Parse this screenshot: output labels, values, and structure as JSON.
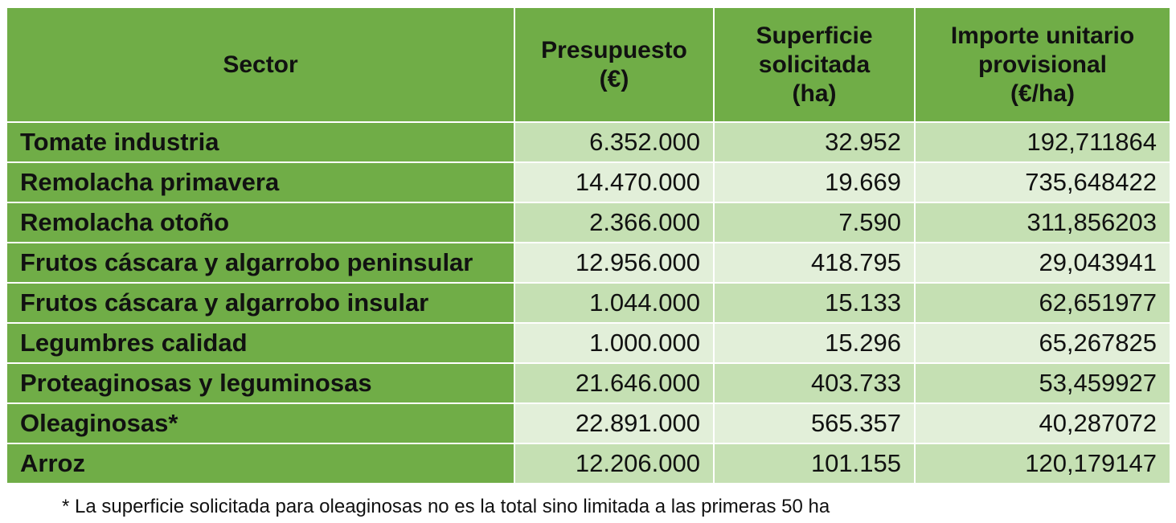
{
  "table": {
    "headers": {
      "sector": "Sector",
      "presupuesto": [
        "Presupuesto",
        "(€)"
      ],
      "superficie": [
        "Superficie",
        "solicitada",
        "(ha)"
      ],
      "importe": [
        "Importe unitario",
        "provisional",
        "(€/ha)"
      ]
    },
    "rows": [
      {
        "sector": "Tomate industria",
        "presupuesto": "6.352.000",
        "superficie": "32.952",
        "importe": "192,711864"
      },
      {
        "sector": "Remolacha primavera",
        "presupuesto": "14.470.000",
        "superficie": "19.669",
        "importe": "735,648422"
      },
      {
        "sector": "Remolacha otoño",
        "presupuesto": "2.366.000",
        "superficie": "7.590",
        "importe": "311,856203"
      },
      {
        "sector": "Frutos cáscara y algarrobo peninsular",
        "presupuesto": "12.956.000",
        "superficie": "418.795",
        "importe": "29,043941"
      },
      {
        "sector": "Frutos cáscara y algarrobo insular",
        "presupuesto": "1.044.000",
        "superficie": "15.133",
        "importe": "62,651977"
      },
      {
        "sector": "Legumbres calidad",
        "presupuesto": "1.000.000",
        "superficie": "15.296",
        "importe": "65,267825"
      },
      {
        "sector": "Proteaginosas y leguminosas",
        "presupuesto": "21.646.000",
        "superficie": "403.733",
        "importe": "53,459927"
      },
      {
        "sector": "Oleaginosas*",
        "presupuesto": "22.891.000",
        "superficie": "565.357",
        "importe": "40,287072"
      },
      {
        "sector": "Arroz",
        "presupuesto": "12.206.000",
        "superficie": "101.155",
        "importe": "120,179147"
      }
    ]
  },
  "footnote": "* La superficie solicitada para oleaginosas no es la total sino limitada a las primeras 50 ha",
  "colors": {
    "header_green": "#70ad47",
    "row_dark": "#c5e0b3",
    "row_light": "#e2efd9"
  }
}
